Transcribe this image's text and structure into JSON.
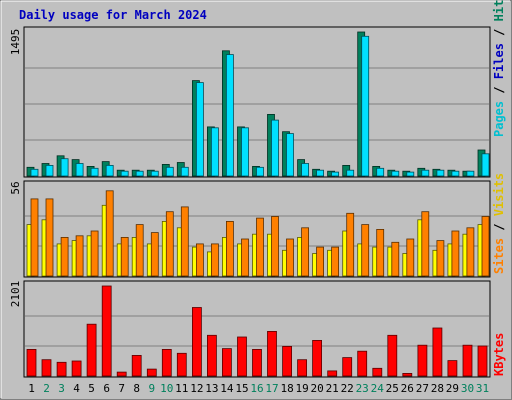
{
  "title": "Daily usage for March 2024",
  "colors": {
    "background": "#c0c0c0",
    "title": "#0000c0",
    "hits": "#00805c",
    "files": "#00e0ff",
    "pages": "#00c0d0",
    "visits": "#ffff00",
    "sites": "#ff8000",
    "kbytes": "#ff0000",
    "weekend_label": "#00805c"
  },
  "chart_data": [
    {
      "type": "bar",
      "panel": "hits-files-pages",
      "max_label": "1495",
      "ylim": [
        0,
        1495
      ],
      "grid": true,
      "legend": [
        {
          "name": "Pages",
          "color": "#00c0d0"
        },
        {
          "name": "Files",
          "color": "#0000c0"
        },
        {
          "name": "Hits",
          "color": "#00805c"
        }
      ],
      "categories": [
        "1",
        "2",
        "3",
        "4",
        "5",
        "6",
        "7",
        "8",
        "9",
        "10",
        "11",
        "12",
        "13",
        "14",
        "15",
        "16",
        "17",
        "18",
        "19",
        "20",
        "21",
        "22",
        "23",
        "24",
        "25",
        "26",
        "27",
        "28",
        "29",
        "30",
        "31"
      ],
      "series": [
        {
          "name": "Hits",
          "color": "#00805c",
          "values": [
            90,
            130,
            210,
            170,
            100,
            150,
            60,
            60,
            60,
            120,
            140,
            990,
            510,
            1300,
            510,
            100,
            640,
            460,
            170,
            70,
            50,
            110,
            1495,
            100,
            60,
            50,
            80,
            70,
            60,
            50,
            270
          ]
        },
        {
          "name": "Files",
          "color": "#00e0ff",
          "values": [
            70,
            110,
            180,
            130,
            80,
            110,
            50,
            50,
            50,
            90,
            90,
            970,
            500,
            1260,
            500,
            90,
            580,
            440,
            130,
            60,
            40,
            60,
            1450,
            80,
            50,
            40,
            60,
            60,
            50,
            50,
            230
          ]
        }
      ]
    },
    {
      "type": "bar",
      "panel": "visits-sites",
      "max_label": "56",
      "ylim": [
        0,
        56
      ],
      "grid": true,
      "legend": [
        {
          "name": "Sites",
          "color": "#ff8000"
        },
        {
          "name": "Visits",
          "color": "#ffff00"
        }
      ],
      "categories": [
        "1",
        "2",
        "3",
        "4",
        "5",
        "6",
        "7",
        "8",
        "9",
        "10",
        "11",
        "12",
        "13",
        "14",
        "15",
        "16",
        "17",
        "18",
        "19",
        "20",
        "21",
        "22",
        "23",
        "24",
        "25",
        "26",
        "27",
        "28",
        "29",
        "30",
        "31"
      ],
      "series": [
        {
          "name": "Visits",
          "color": "#ffff00",
          "values": [
            32,
            35,
            20,
            22,
            25,
            44,
            20,
            24,
            20,
            34,
            30,
            18,
            15,
            24,
            20,
            26,
            26,
            16,
            24,
            14,
            16,
            28,
            20,
            18,
            18,
            14,
            35,
            16,
            20,
            26,
            32
          ]
        },
        {
          "name": "Sites",
          "color": "#ff8000",
          "values": [
            48,
            48,
            24,
            25,
            28,
            53,
            24,
            32,
            27,
            40,
            43,
            20,
            20,
            34,
            23,
            36,
            37,
            23,
            30,
            18,
            18,
            39,
            32,
            29,
            21,
            23,
            40,
            22,
            28,
            30,
            37
          ]
        }
      ]
    },
    {
      "type": "bar",
      "panel": "kbytes",
      "max_label": "2101",
      "ylim": [
        0,
        2101
      ],
      "grid": true,
      "legend": [
        {
          "name": "KBytes",
          "color": "#ff0000"
        }
      ],
      "categories": [
        "1",
        "2",
        "3",
        "4",
        "5",
        "6",
        "7",
        "8",
        "9",
        "10",
        "11",
        "12",
        "13",
        "14",
        "15",
        "16",
        "17",
        "18",
        "19",
        "20",
        "21",
        "22",
        "23",
        "24",
        "25",
        "26",
        "27",
        "28",
        "29",
        "30",
        "31"
      ],
      "series": [
        {
          "name": "KBytes",
          "color": "#ff0000",
          "values": [
            620,
            380,
            320,
            350,
            1210,
            2101,
            90,
            480,
            160,
            620,
            530,
            1600,
            950,
            640,
            910,
            620,
            1040,
            690,
            380,
            830,
            120,
            430,
            580,
            180,
            950,
            60,
            720,
            1120,
            360,
            720,
            700
          ]
        }
      ]
    }
  ],
  "x_axis": {
    "labels": [
      {
        "text": "1",
        "weekend": false
      },
      {
        "text": "2",
        "weekend": true
      },
      {
        "text": "3",
        "weekend": true
      },
      {
        "text": "4",
        "weekend": false
      },
      {
        "text": "5",
        "weekend": false
      },
      {
        "text": "6",
        "weekend": false
      },
      {
        "text": "7",
        "weekend": false
      },
      {
        "text": "8",
        "weekend": false
      },
      {
        "text": "9",
        "weekend": true
      },
      {
        "text": "10",
        "weekend": true
      },
      {
        "text": "11",
        "weekend": false
      },
      {
        "text": "12",
        "weekend": false
      },
      {
        "text": "13",
        "weekend": false
      },
      {
        "text": "14",
        "weekend": false
      },
      {
        "text": "15",
        "weekend": false
      },
      {
        "text": "16",
        "weekend": true
      },
      {
        "text": "17",
        "weekend": true
      },
      {
        "text": "18",
        "weekend": false
      },
      {
        "text": "19",
        "weekend": false
      },
      {
        "text": "20",
        "weekend": false
      },
      {
        "text": "21",
        "weekend": false
      },
      {
        "text": "22",
        "weekend": false
      },
      {
        "text": "23",
        "weekend": true
      },
      {
        "text": "24",
        "weekend": true
      },
      {
        "text": "25",
        "weekend": false
      },
      {
        "text": "26",
        "weekend": false
      },
      {
        "text": "27",
        "weekend": false
      },
      {
        "text": "28",
        "weekend": false
      },
      {
        "text": "29",
        "weekend": false
      },
      {
        "text": "30",
        "weekend": true
      },
      {
        "text": "31",
        "weekend": true
      }
    ]
  }
}
